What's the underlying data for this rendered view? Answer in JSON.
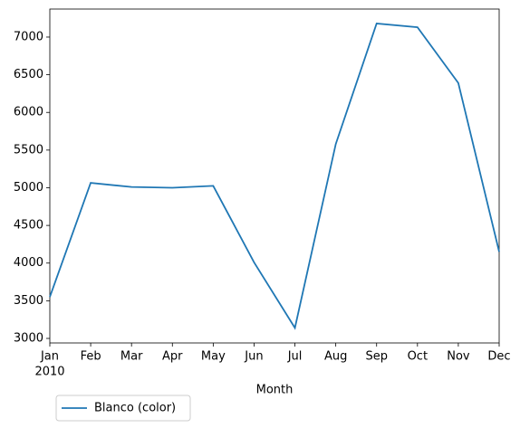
{
  "chart_data": {
    "type": "line",
    "x_label": "Month",
    "categories": [
      "Jan",
      "Feb",
      "Mar",
      "Apr",
      "May",
      "Jun",
      "Jul",
      "Aug",
      "Sep",
      "Oct",
      "Nov",
      "Dec"
    ],
    "year_label": "2010",
    "series": [
      {
        "name": "Blanco (color)",
        "color": "#1f77b4",
        "values": [
          3550,
          5065,
          5010,
          5000,
          5025,
          4010,
          3140,
          5580,
          7180,
          7130,
          6390,
          4150
        ]
      }
    ],
    "ylim": [
      2940,
      7372
    ],
    "yticks": [
      3000,
      3500,
      4000,
      4500,
      5000,
      5500,
      6000,
      6500,
      7000
    ],
    "legend": "below-left"
  }
}
